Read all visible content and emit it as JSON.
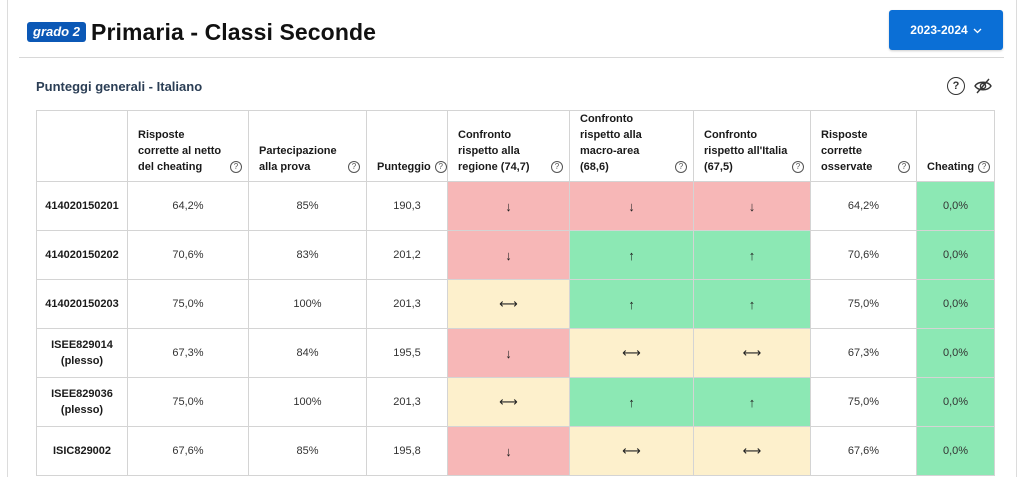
{
  "header": {
    "badge": "grado 2",
    "title": "Primaria - Classi Seconde",
    "year_button": "2023-2024",
    "year_chevron": "chevron-down-icon"
  },
  "section": {
    "title": "Punteggi generali - Italiano",
    "help_icon": "?",
    "hide_icon": "eye-slash-icon"
  },
  "colors": {
    "badge": "#0b58b6",
    "button": "#0b6fd6",
    "red": "#f7b7b7",
    "green": "#8ce8b4",
    "yellow": "#fdf0cc"
  },
  "table": {
    "columns": [
      {
        "label": "",
        "help": false
      },
      {
        "label": "Risposte corrette al netto del cheating",
        "help": true
      },
      {
        "label": "Partecipazione alla prova",
        "help": true
      },
      {
        "label": "Punteggio",
        "help": true
      },
      {
        "label": "Confronto rispetto alla regione (74,7)",
        "help": true
      },
      {
        "label": "Confronto rispetto alla macro-area (68,6)",
        "help": true
      },
      {
        "label": "Confronto rispetto all'Italia (67,5)",
        "help": true
      },
      {
        "label": "Risposte corrette osservate",
        "help": true
      },
      {
        "label": "Cheating",
        "help": true
      }
    ],
    "rows": [
      {
        "name": "414020150201",
        "netto": "64,2%",
        "partecipazione": "85%",
        "punteggio": "190,3",
        "regione": {
          "arrow": "↓",
          "status": "red"
        },
        "macro": {
          "arrow": "↓",
          "status": "red"
        },
        "italia": {
          "arrow": "↓",
          "status": "red"
        },
        "osservate": "64,2%",
        "cheating": "0,0%"
      },
      {
        "name": "414020150202",
        "netto": "70,6%",
        "partecipazione": "83%",
        "punteggio": "201,2",
        "regione": {
          "arrow": "↓",
          "status": "red"
        },
        "macro": {
          "arrow": "↑",
          "status": "green"
        },
        "italia": {
          "arrow": "↑",
          "status": "green"
        },
        "osservate": "70,6%",
        "cheating": "0,0%"
      },
      {
        "name": "414020150203",
        "netto": "75,0%",
        "partecipazione": "100%",
        "punteggio": "201,3",
        "regione": {
          "arrow": "⟷",
          "status": "yellow"
        },
        "macro": {
          "arrow": "↑",
          "status": "green"
        },
        "italia": {
          "arrow": "↑",
          "status": "green"
        },
        "osservate": "75,0%",
        "cheating": "0,0%"
      },
      {
        "name": "ISEE829014 (plesso)",
        "netto": "67,3%",
        "partecipazione": "84%",
        "punteggio": "195,5",
        "regione": {
          "arrow": "↓",
          "status": "red"
        },
        "macro": {
          "arrow": "⟷",
          "status": "yellow"
        },
        "italia": {
          "arrow": "⟷",
          "status": "yellow"
        },
        "osservate": "67,3%",
        "cheating": "0,0%"
      },
      {
        "name": "ISEE829036 (plesso)",
        "netto": "75,0%",
        "partecipazione": "100%",
        "punteggio": "201,3",
        "regione": {
          "arrow": "⟷",
          "status": "yellow"
        },
        "macro": {
          "arrow": "↑",
          "status": "green"
        },
        "italia": {
          "arrow": "↑",
          "status": "green"
        },
        "osservate": "75,0%",
        "cheating": "0,0%"
      },
      {
        "name": "ISIC829002",
        "netto": "67,6%",
        "partecipazione": "85%",
        "punteggio": "195,8",
        "regione": {
          "arrow": "↓",
          "status": "red"
        },
        "macro": {
          "arrow": "⟷",
          "status": "yellow"
        },
        "italia": {
          "arrow": "⟷",
          "status": "yellow"
        },
        "osservate": "67,6%",
        "cheating": "0,0%"
      }
    ]
  }
}
